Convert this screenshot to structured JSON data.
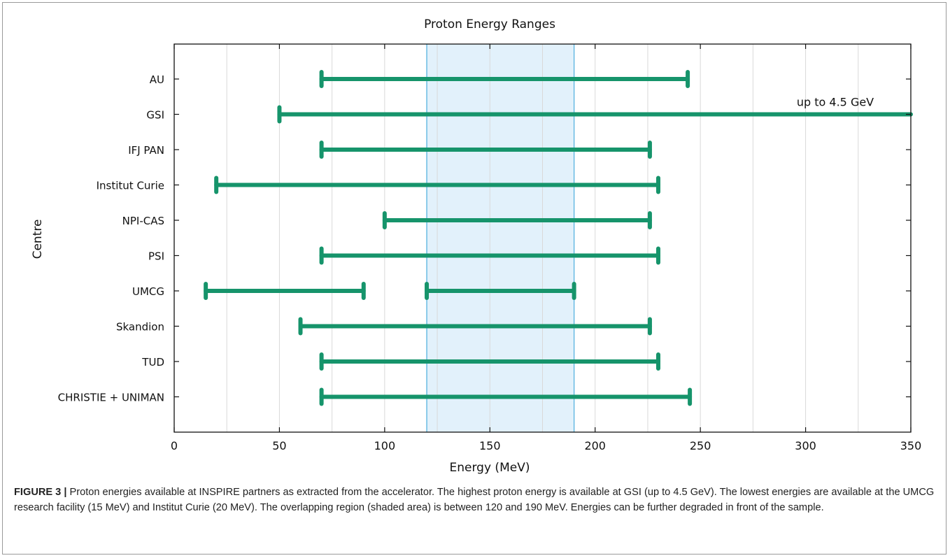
{
  "chart_data": {
    "type": "range-bar",
    "title": "Proton Energy Ranges",
    "xlabel": "Energy (MeV)",
    "ylabel": "Centre",
    "xlim": [
      0,
      350
    ],
    "xticks": [
      0,
      50,
      100,
      150,
      200,
      250,
      300,
      350
    ],
    "grid": "vertical minor every 25",
    "categories": [
      "AU",
      "GSI",
      "IFJ PAN",
      "Institut Curie",
      "NPI-CAS",
      "PSI",
      "UMCG",
      "Skandion",
      "TUD",
      "CHRISTIE + UNIMAN"
    ],
    "ranges": [
      {
        "centre": "AU",
        "segments": [
          [
            70,
            244
          ]
        ]
      },
      {
        "centre": "GSI",
        "segments": [
          [
            50,
            350
          ]
        ],
        "open_end": true,
        "annotation": "up to 4.5 GeV"
      },
      {
        "centre": "IFJ PAN",
        "segments": [
          [
            70,
            226
          ]
        ]
      },
      {
        "centre": "Institut Curie",
        "segments": [
          [
            20,
            230
          ]
        ]
      },
      {
        "centre": "NPI-CAS",
        "segments": [
          [
            100,
            226
          ]
        ]
      },
      {
        "centre": "PSI",
        "segments": [
          [
            70,
            230
          ]
        ]
      },
      {
        "centre": "UMCG",
        "segments": [
          [
            15,
            90
          ],
          [
            120,
            190
          ]
        ]
      },
      {
        "centre": "Skandion",
        "segments": [
          [
            60,
            226
          ]
        ]
      },
      {
        "centre": "TUD",
        "segments": [
          [
            70,
            230
          ]
        ]
      },
      {
        "centre": "CHRISTIE + UNIMAN",
        "segments": [
          [
            70,
            245
          ]
        ]
      }
    ],
    "shaded_region": [
      120,
      190
    ],
    "colors": {
      "bar": "#16946b",
      "shade_fill": "#e2f1fb",
      "shade_edge": "#56b3e0",
      "grid": "#d9d9d9"
    }
  },
  "caption": {
    "label": "FIGURE 3 |",
    "text": " Proton energies available at INSPIRE partners as extracted from the accelerator. The highest proton energy is available at GSI (up to 4.5 GeV). The lowest energies are available at the UMCG research facility (15 MeV) and Institut Curie (20 MeV). The overlapping region (shaded area) is between 120 and 190 MeV. Energies can be further degraded in front of the sample."
  }
}
